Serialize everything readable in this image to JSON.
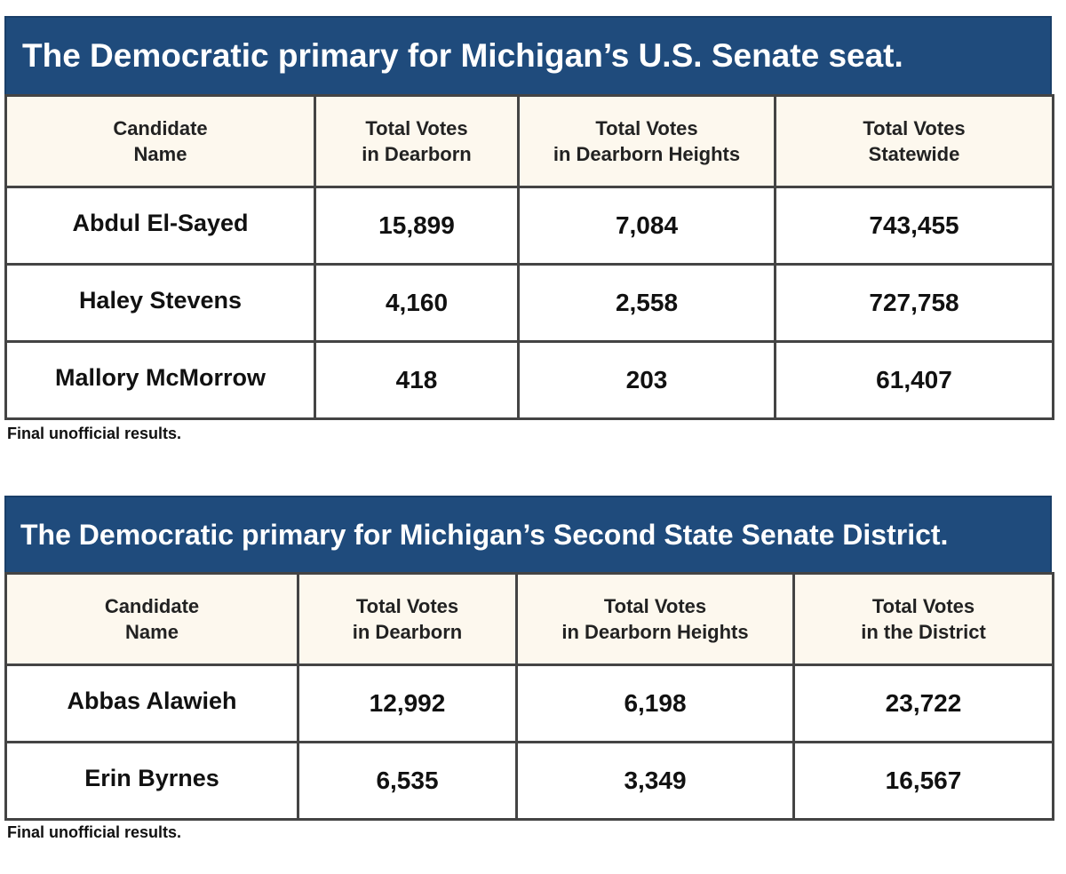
{
  "tables": [
    {
      "title": "The Democratic primary for Michigan’s U.S. Senate seat.",
      "headers": [
        [
          "Candidate",
          "Name"
        ],
        [
          "Total Votes",
          "in Dearborn"
        ],
        [
          "Total Votes",
          "in Dearborn Heights"
        ],
        [
          "Total Votes",
          "Statewide"
        ]
      ],
      "rows": [
        [
          "Abdul El-Sayed",
          "15,899",
          "7,084",
          "743,455"
        ],
        [
          "Haley Stevens",
          "4,160",
          "2,558",
          "727,758"
        ],
        [
          "Mallory McMorrow",
          "418",
          "203",
          "61,407"
        ]
      ],
      "footnote": "Final unofficial results."
    },
    {
      "title": "The Democratic primary for Michigan’s Second State Senate District.",
      "headers": [
        [
          "Candidate",
          "Name"
        ],
        [
          "Total Votes",
          "in Dearborn"
        ],
        [
          "Total Votes",
          "in Dearborn Heights"
        ],
        [
          "Total Votes",
          "in the District"
        ]
      ],
      "rows": [
        [
          "Abbas Alawieh",
          "12,992",
          "6,198",
          "23,722"
        ],
        [
          "Erin Byrnes",
          "6,535",
          "3,349",
          "16,567"
        ]
      ],
      "footnote": "Final unofficial results."
    }
  ],
  "colors": {
    "title_bar": "#1f4b7c",
    "header_background": "#fdf8ee",
    "border": "#444444"
  }
}
